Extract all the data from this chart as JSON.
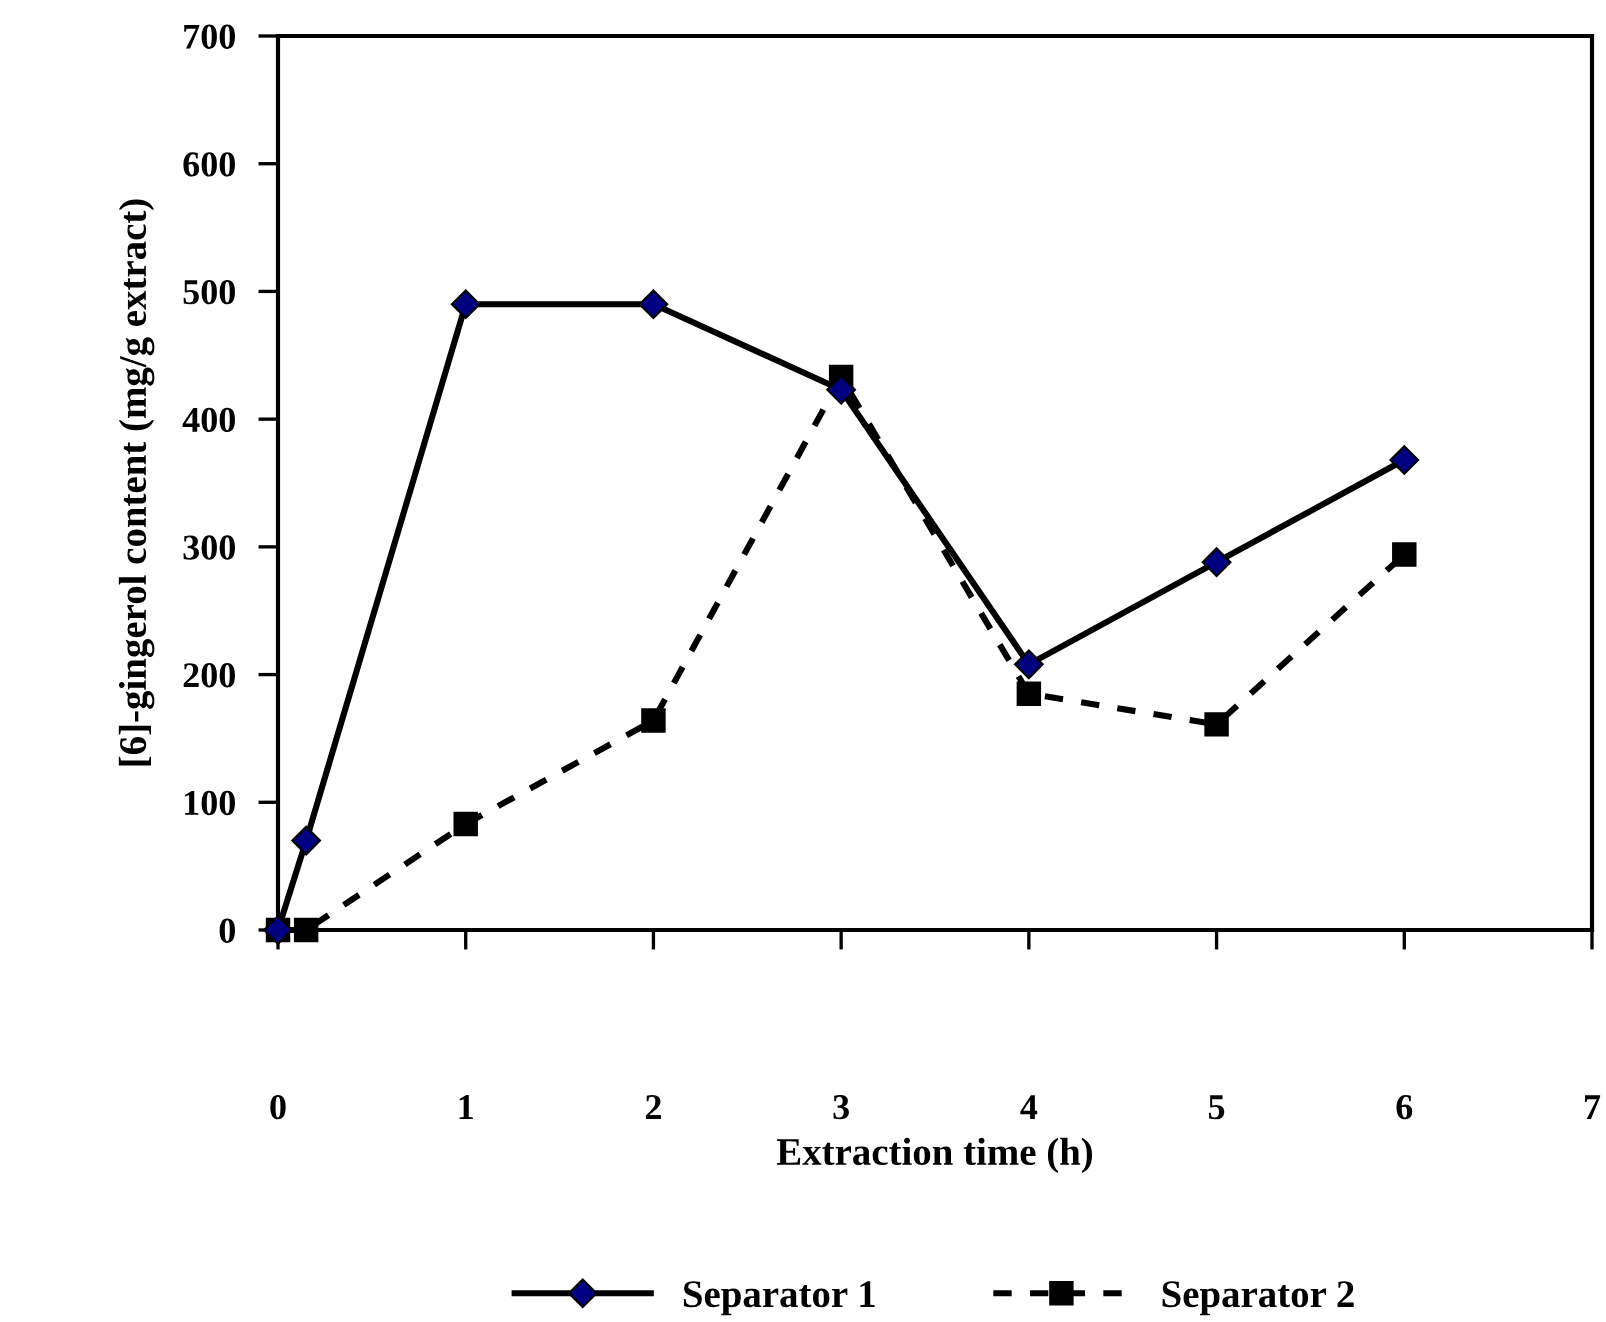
{
  "chart_data": {
    "type": "line",
    "xlabel": "Extraction time (h)",
    "ylabel": "[6]-gingerol content (mg/g extract)",
    "x": [
      0,
      0.15,
      1,
      2,
      3,
      4,
      5,
      6
    ],
    "series": [
      {
        "name": "Separator 1",
        "color": "#000080",
        "values": [
          0,
          70,
          490,
          490,
          423,
          208,
          288,
          368
        ],
        "marker": "diamond",
        "line_style": "solid"
      },
      {
        "name": "Separator 2",
        "color": "#000000",
        "values": [
          0,
          0,
          83,
          164,
          433,
          185,
          161,
          294
        ],
        "marker": "square",
        "line_style": "dashed"
      }
    ],
    "xlim": [
      0,
      7
    ],
    "xticks": [
      0,
      1,
      2,
      3,
      4,
      5,
      6,
      7
    ],
    "ylim": [
      0,
      700
    ],
    "yticks": [
      0,
      100,
      200,
      300,
      400,
      500,
      600,
      700
    ],
    "grid": false,
    "legend": "bottom"
  }
}
